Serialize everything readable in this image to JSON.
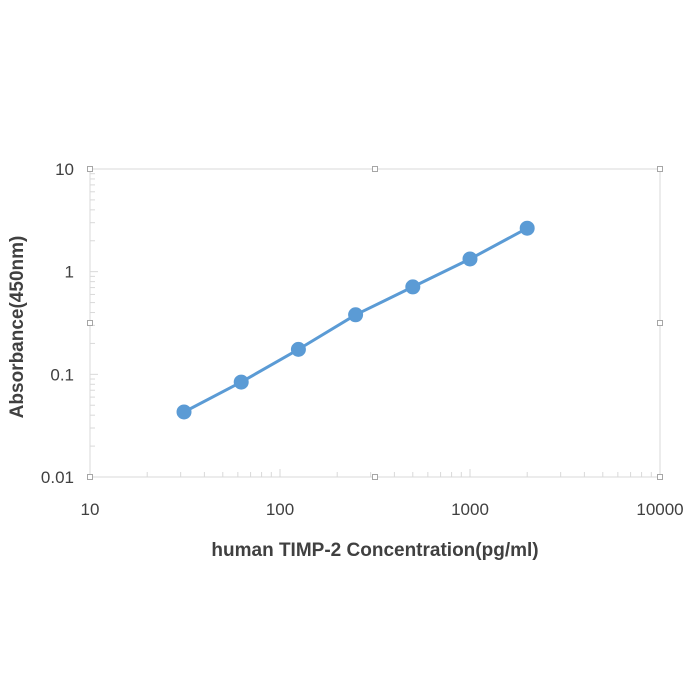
{
  "chart_data": {
    "type": "line",
    "title": "",
    "xlabel": "human TIMP-2 Concentration(pg/ml)",
    "ylabel": "Absorbance(450nm)",
    "x_scale": "log",
    "y_scale": "log",
    "xlim": [
      10,
      10000
    ],
    "ylim": [
      0.01,
      10
    ],
    "x_ticks": [
      "10",
      "100",
      "1000",
      "10000"
    ],
    "y_ticks": [
      "0.01",
      "0.1",
      "1",
      "10"
    ],
    "grid": false,
    "legend": "none",
    "series": [
      {
        "x": [
          31.25,
          62.5,
          125,
          250,
          500,
          1000,
          2000
        ],
        "y": [
          0.043,
          0.084,
          0.175,
          0.38,
          0.71,
          1.33,
          2.65
        ],
        "color": "#5b9bd5"
      }
    ],
    "colors": {
      "line": "#5b9bd5",
      "marker": "#5b9bd5",
      "plot_border": "#d9d9d9",
      "text": "#404040"
    }
  }
}
